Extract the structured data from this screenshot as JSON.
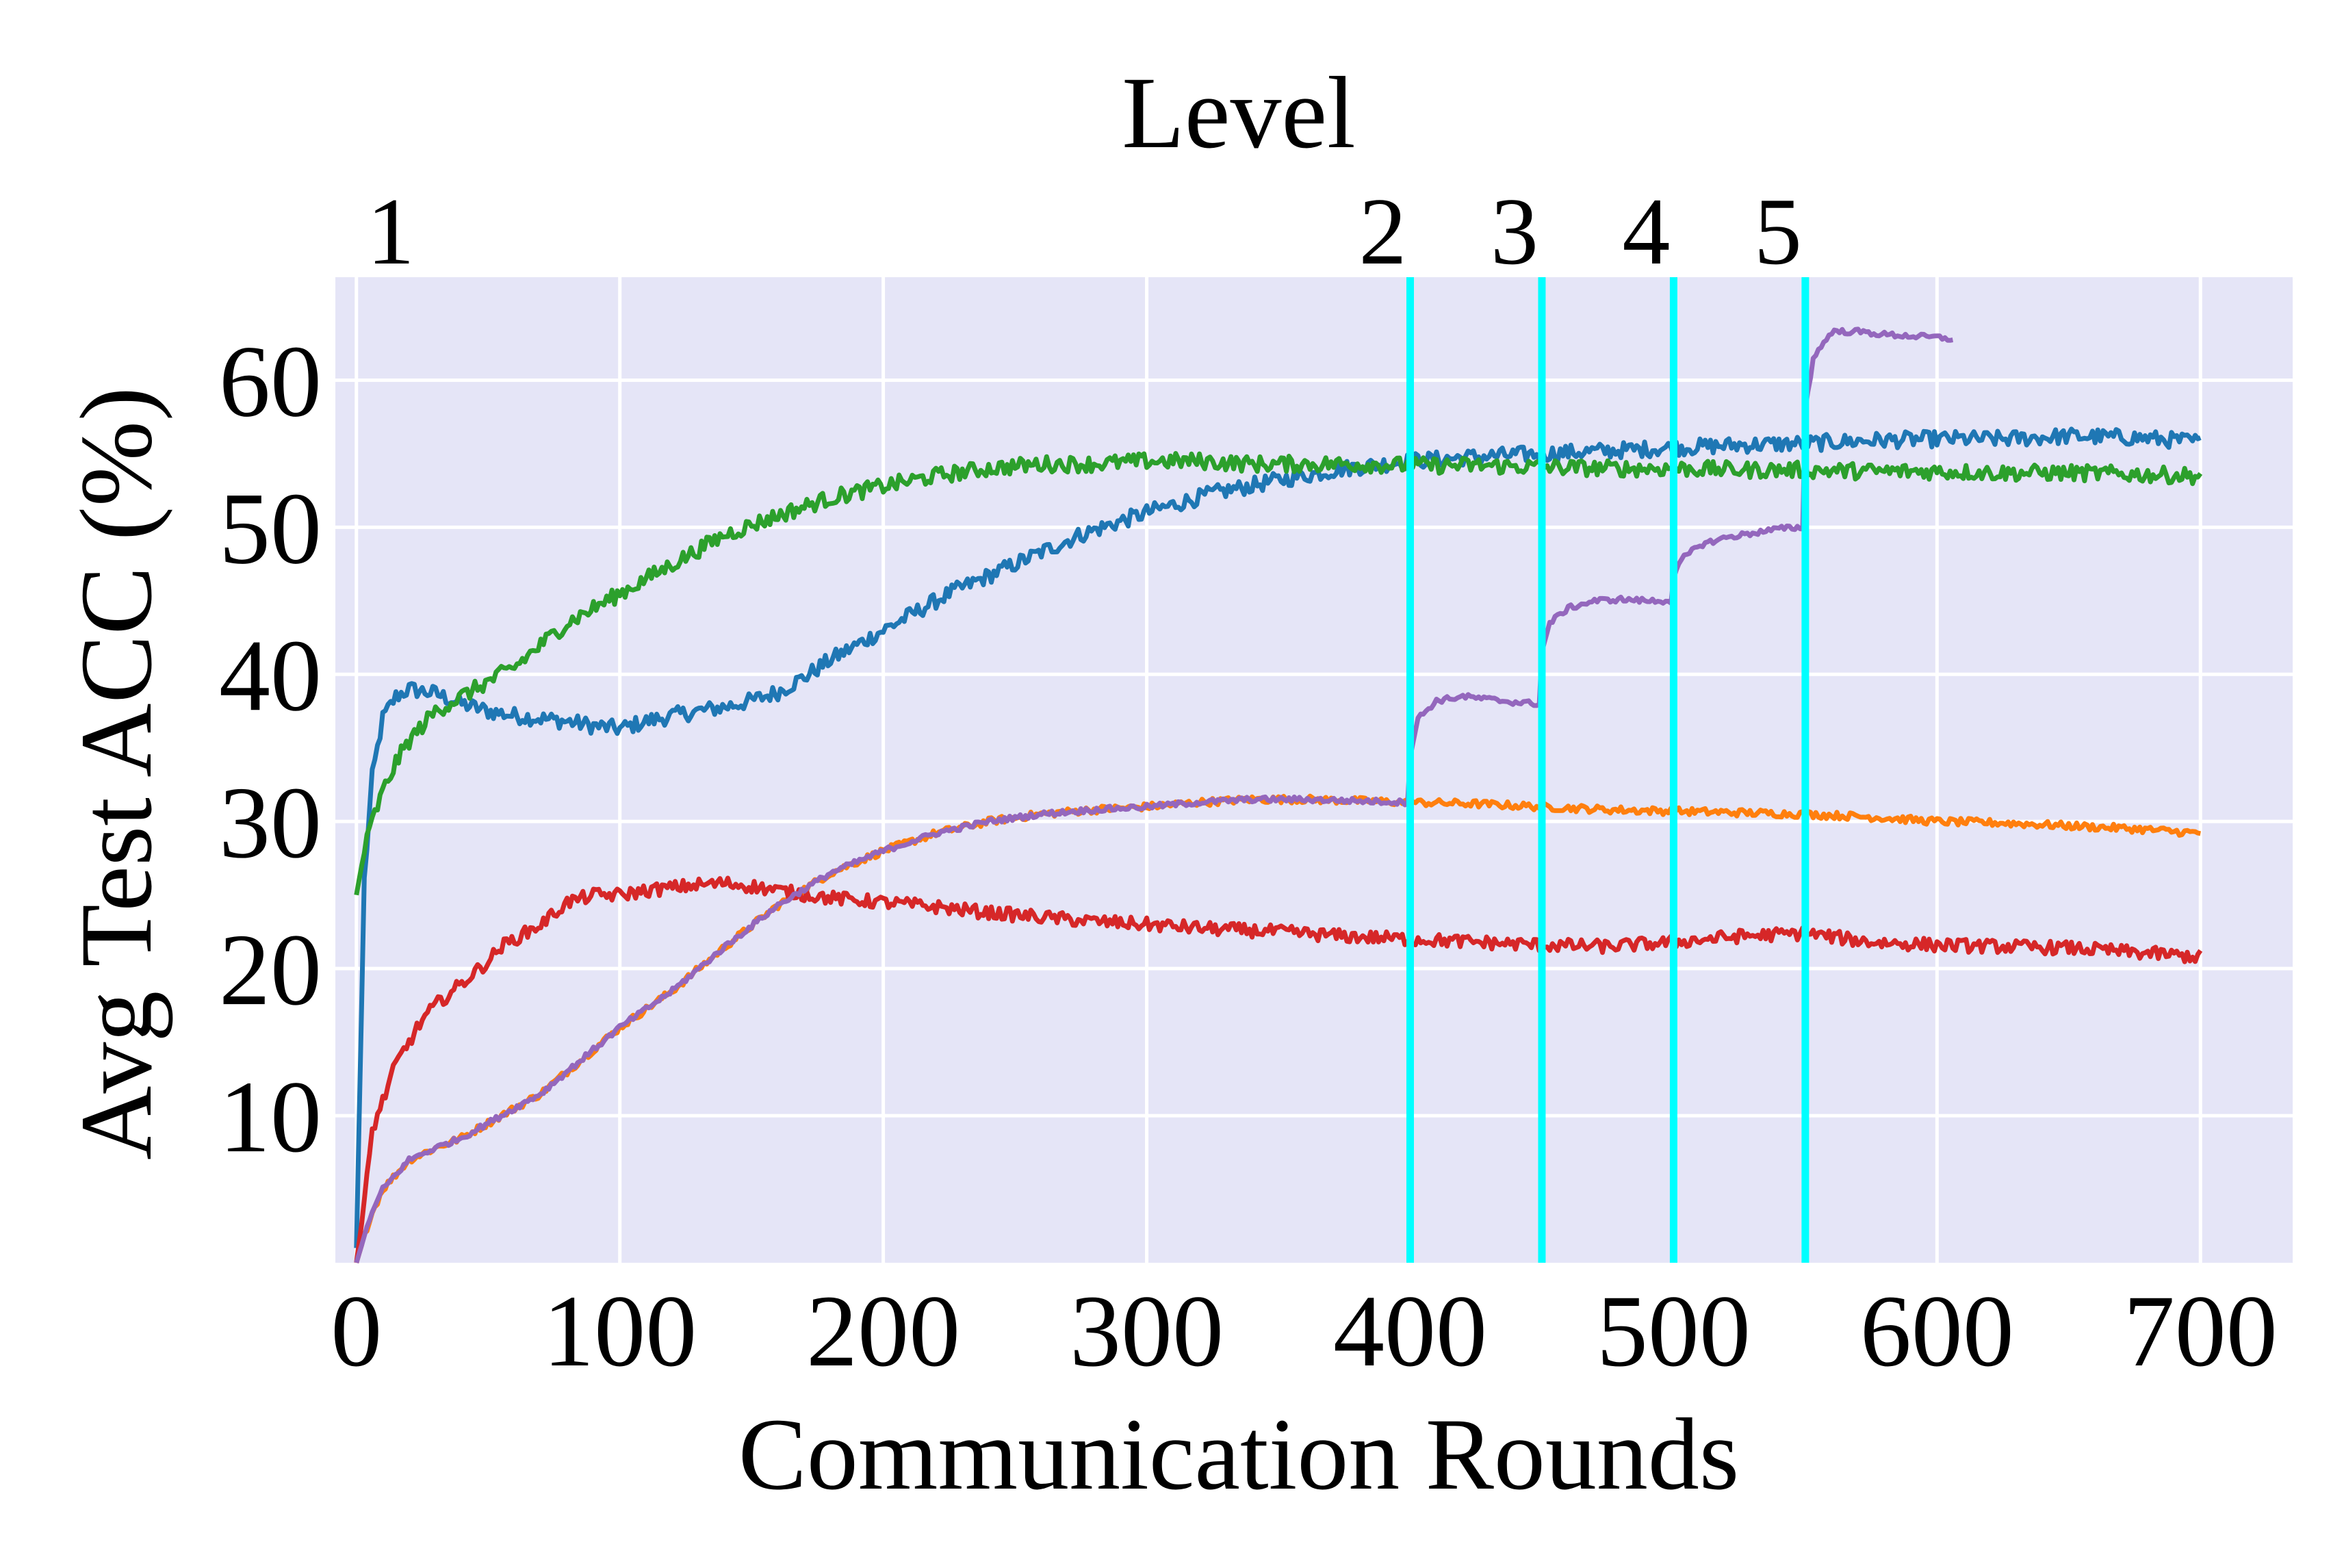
{
  "chart_data": {
    "type": "line",
    "xlabel": "Communication Rounds",
    "ylabel": "Avg Test ACC (%)",
    "top_axis_label": "Level",
    "xlim": [
      -8,
      735
    ],
    "ylim": [
      0,
      67
    ],
    "x_ticks": [
      0,
      100,
      200,
      300,
      400,
      500,
      600,
      700
    ],
    "x_tick_labels": [
      "0",
      "100",
      "200",
      "300",
      "400",
      "500",
      "600",
      "700"
    ],
    "y_ticks": [
      10,
      20,
      30,
      40,
      50,
      60
    ],
    "y_tick_labels": [
      "10",
      "20",
      "30",
      "40",
      "50",
      "60"
    ],
    "grid": true,
    "background_color": "#e5e5f7",
    "levels": [
      {
        "label": "1",
        "x": 0,
        "line": false
      },
      {
        "label": "2",
        "x": 400,
        "line": true
      },
      {
        "label": "3",
        "x": 450,
        "line": true
      },
      {
        "label": "4",
        "x": 500,
        "line": true
      },
      {
        "label": "5",
        "x": 550,
        "line": true
      }
    ],
    "level_line_color": "#00ffff",
    "series": [
      {
        "color": "#1f77b4",
        "x": [
          0,
          3,
          6,
          10,
          15,
          20,
          30,
          40,
          50,
          60,
          70,
          80,
          90,
          100,
          110,
          120,
          130,
          140,
          150,
          160,
          170,
          180,
          190,
          200,
          225,
          250,
          275,
          300,
          325,
          350,
          375,
          400,
          425,
          450,
          475,
          500,
          525,
          550,
          575,
          600,
          625,
          650,
          675,
          700
        ],
        "y": [
          1,
          26,
          33,
          37,
          38.5,
          39,
          38.7,
          38,
          37.5,
          37.2,
          37,
          36.8,
          36.5,
          36.3,
          36.8,
          37.2,
          37.5,
          37.8,
          38.2,
          38.8,
          39.8,
          41,
          42,
          43,
          45.5,
          47.5,
          49.5,
          51,
          52.3,
          53.2,
          54,
          54.5,
          54.8,
          55,
          55.2,
          55.4,
          55.6,
          55.7,
          55.9,
          56,
          56,
          56.2,
          56.1,
          55.8
        ]
      },
      {
        "color": "#ff7f0e",
        "x": [
          0,
          5,
          10,
          20,
          30,
          40,
          50,
          60,
          70,
          80,
          90,
          100,
          120,
          140,
          160,
          180,
          200,
          220,
          240,
          260,
          280,
          300,
          320,
          340,
          360,
          380,
          400,
          425,
          450,
          475,
          500,
          525,
          550,
          575,
          600,
          625,
          650,
          675,
          700
        ],
        "y": [
          0,
          3,
          5,
          7,
          7.8,
          8.5,
          9.5,
          10.5,
          11.5,
          13,
          14.5,
          16,
          18.5,
          21.5,
          24.3,
          26.5,
          28,
          29.2,
          30,
          30.5,
          30.8,
          31,
          31.3,
          31.5,
          31.5,
          31.4,
          31.3,
          31.2,
          31,
          30.8,
          30.7,
          30.6,
          30.5,
          30.3,
          30,
          29.9,
          29.7,
          29.5,
          29.2
        ]
      },
      {
        "color": "#2ca02c",
        "x": [
          0,
          3,
          6,
          10,
          15,
          20,
          30,
          40,
          50,
          60,
          70,
          80,
          90,
          100,
          120,
          140,
          160,
          180,
          200,
          220,
          240,
          260,
          280,
          300,
          320,
          340,
          360,
          380,
          400,
          425,
          450,
          475,
          500,
          525,
          550,
          575,
          600,
          625,
          650,
          675,
          700
        ],
        "y": [
          25,
          28,
          30,
          32,
          34,
          35.5,
          37.5,
          38.5,
          39.5,
          40.5,
          42,
          43.5,
          44.5,
          45.5,
          47.5,
          49.5,
          50.8,
          52,
          52.8,
          53.5,
          54,
          54.3,
          54.3,
          54.5,
          54.5,
          54.3,
          54.3,
          54.3,
          54.2,
          54.2,
          54.1,
          54,
          54,
          53.9,
          53.9,
          53.8,
          53.8,
          53.7,
          53.7,
          53.6,
          53.5
        ]
      },
      {
        "color": "#d62728",
        "x": [
          0,
          3,
          6,
          10,
          15,
          20,
          25,
          30,
          40,
          50,
          55,
          60,
          70,
          80,
          90,
          100,
          110,
          120,
          130,
          140,
          150,
          160,
          180,
          200,
          220,
          240,
          260,
          280,
          300,
          325,
          350,
          375,
          400,
          425,
          450,
          475,
          500,
          525,
          550,
          575,
          600,
          625,
          650,
          675,
          700
        ],
        "y": [
          0,
          4,
          9,
          11,
          13.5,
          15,
          16.5,
          17.5,
          19,
          20.5,
          21.5,
          22,
          23,
          24.5,
          25,
          25,
          25.3,
          25.5,
          25.7,
          25.8,
          25.6,
          25.3,
          24.8,
          24.5,
          24.2,
          23.8,
          23.5,
          23.2,
          23,
          22.7,
          22.5,
          22.2,
          22,
          21.8,
          21.6,
          21.5,
          21.8,
          22.2,
          22.4,
          21.8,
          21.6,
          21.5,
          21.4,
          21.1,
          20.8
        ]
      },
      {
        "color": "#9467bd",
        "x": [
          0,
          5,
          10,
          20,
          30,
          40,
          50,
          60,
          70,
          80,
          90,
          100,
          120,
          140,
          160,
          180,
          200,
          220,
          240,
          260,
          280,
          300,
          320,
          340,
          360,
          380,
          399,
          400,
          403,
          410,
          420,
          430,
          440,
          449,
          450,
          453,
          460,
          470,
          480,
          490,
          499,
          500,
          503,
          510,
          520,
          530,
          540,
          549,
          550,
          553,
          560,
          570,
          580,
          590,
          600,
          606
        ],
        "y": [
          0,
          3,
          5,
          7,
          7.8,
          8.5,
          9.5,
          10.5,
          11.5,
          13,
          14.5,
          16,
          18.5,
          21.5,
          24.3,
          26.5,
          28,
          29.2,
          30,
          30.5,
          30.8,
          31,
          31.3,
          31.5,
          31.5,
          31.4,
          31.3,
          34.5,
          37,
          38.2,
          38.5,
          38.3,
          38.1,
          38,
          41.5,
          43.5,
          44.5,
          45,
          45.1,
          45,
          45,
          46.5,
          47.8,
          48.8,
          49.3,
          49.6,
          49.9,
          50,
          58,
          61.5,
          63.3,
          63.3,
          63.1,
          63,
          62.9,
          62.8
        ]
      }
    ]
  }
}
